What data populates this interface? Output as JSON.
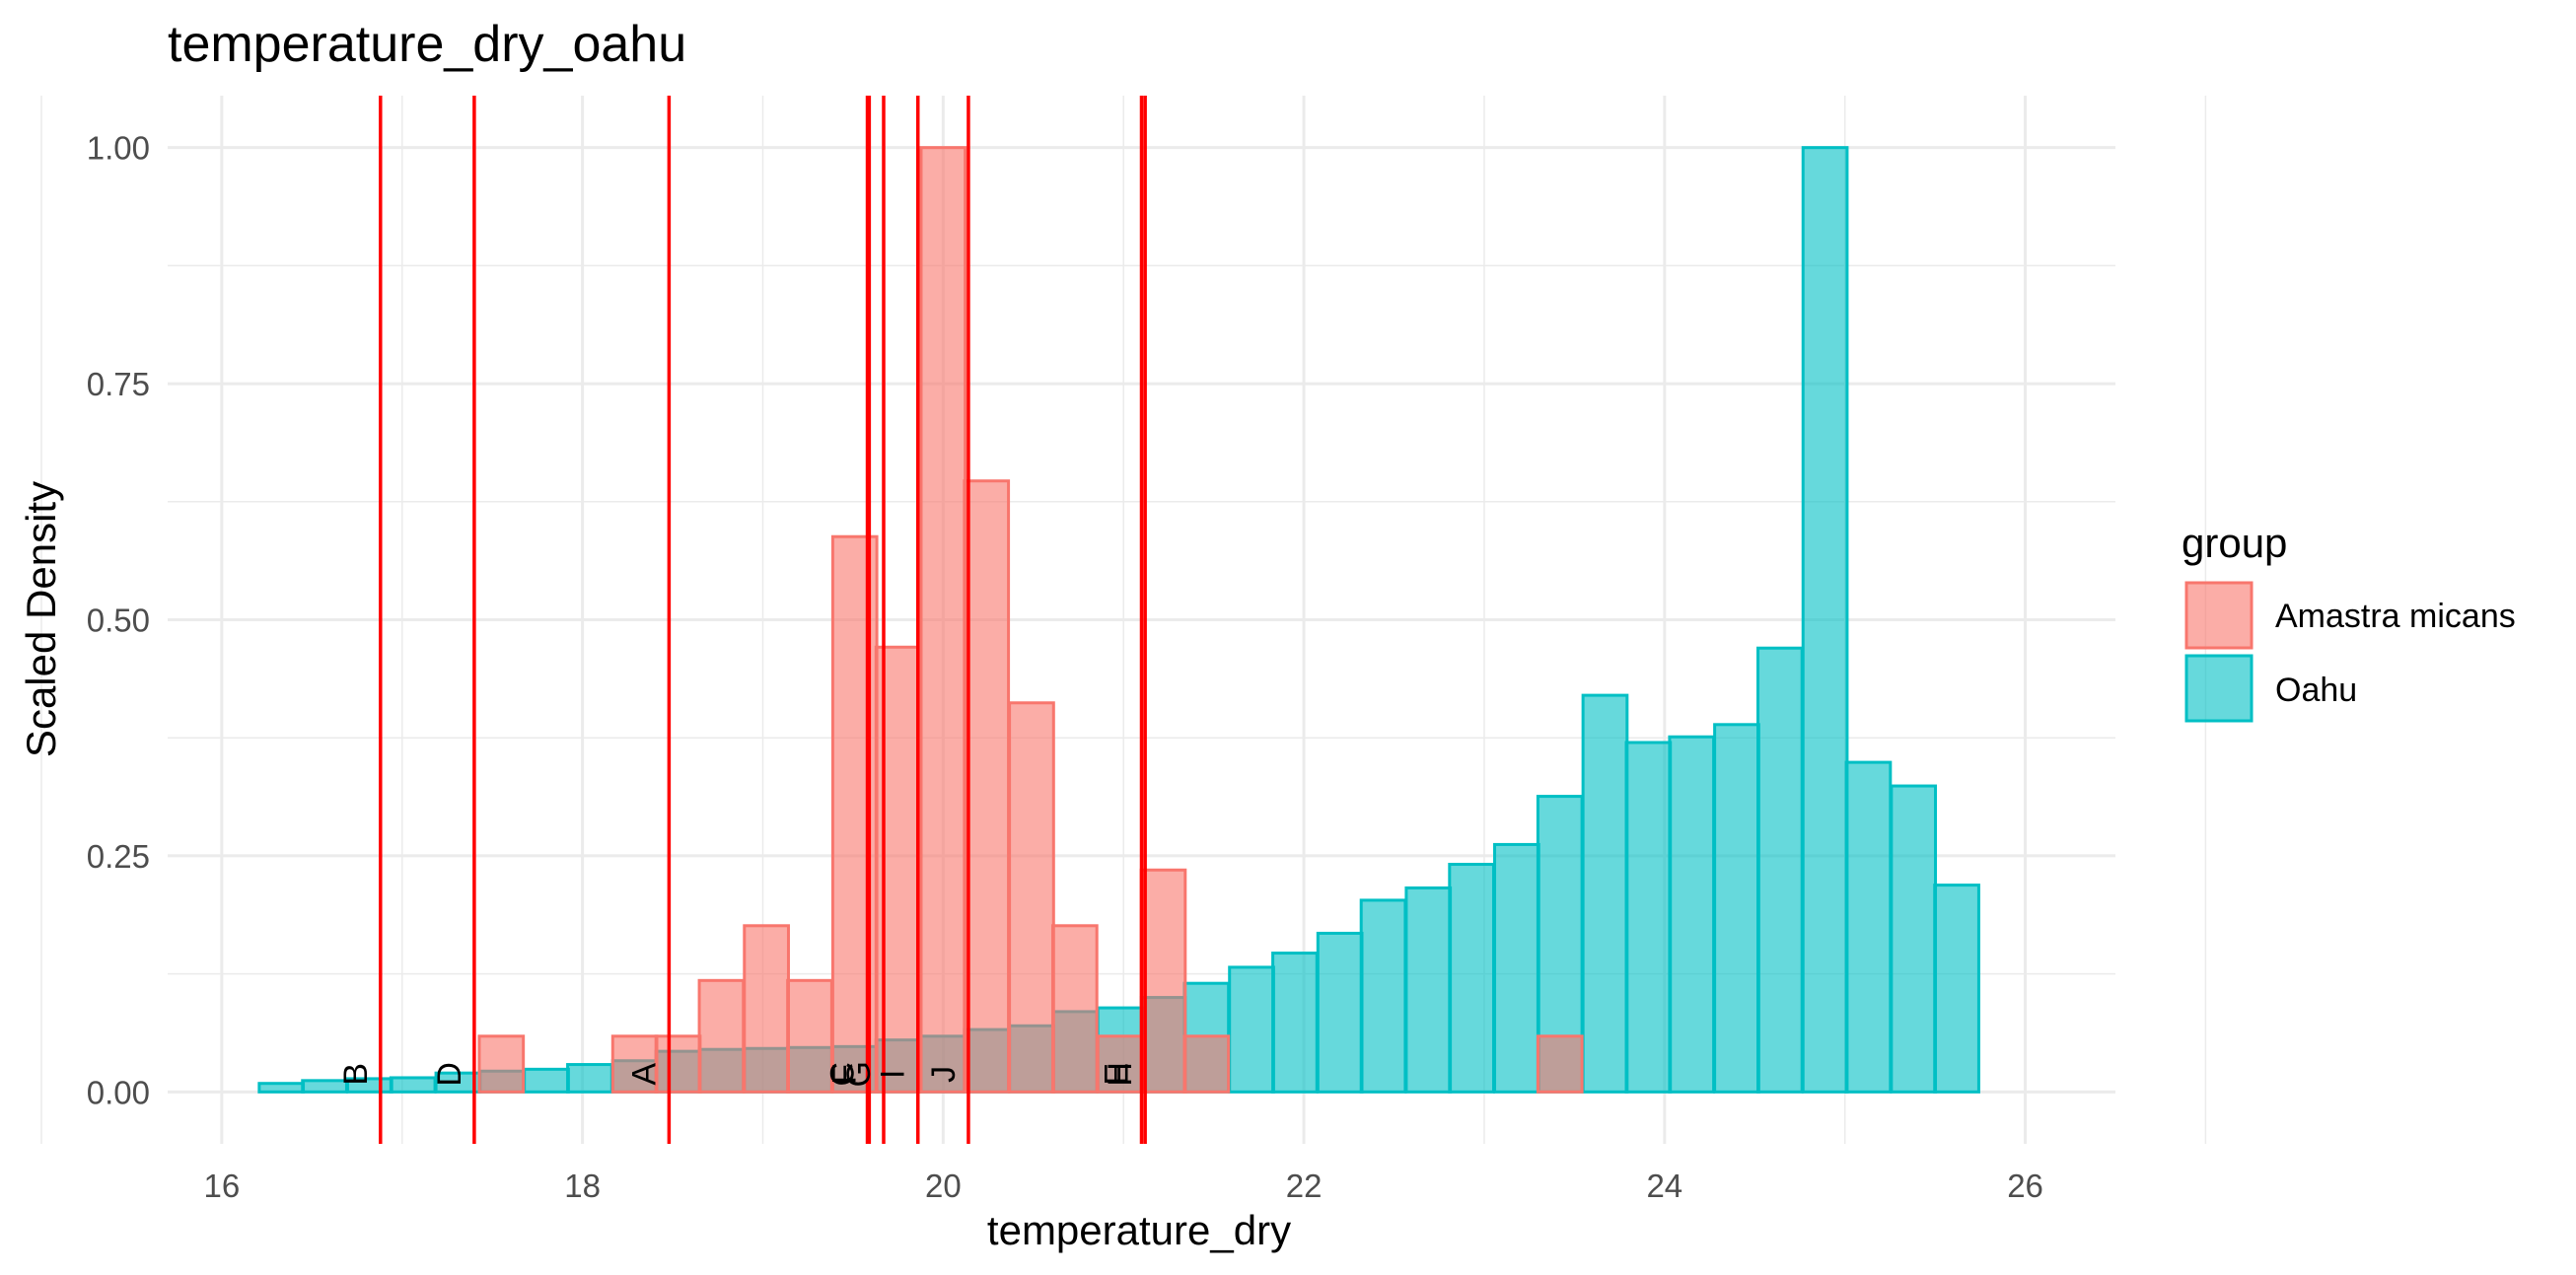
{
  "chart_data": {
    "type": "bar",
    "title": "temperature_dry_oahu",
    "xlabel": "temperature_dry",
    "ylabel": "Scaled Density",
    "xlim": [
      15.7,
      26.5
    ],
    "ylim": [
      -0.055,
      1.055
    ],
    "x_ticks": [
      "16",
      "18",
      "20",
      "22",
      "24",
      "26"
    ],
    "y_ticks": [
      "0.00",
      "0.25",
      "0.50",
      "0.75",
      "1.00"
    ],
    "grid": true,
    "legend_title": "group",
    "legend_position": "right",
    "series": [
      {
        "name": "Oahu",
        "color": "#00BFC4",
        "bin_width": 0.2444,
        "bins": [
          [
            16.33,
            0.009
          ],
          [
            16.57,
            0.012
          ],
          [
            16.82,
            0.014
          ],
          [
            17.06,
            0.015
          ],
          [
            17.31,
            0.02
          ],
          [
            17.55,
            0.022
          ],
          [
            17.8,
            0.024
          ],
          [
            18.04,
            0.029
          ],
          [
            18.29,
            0.033
          ],
          [
            18.53,
            0.043
          ],
          [
            18.77,
            0.045
          ],
          [
            19.02,
            0.046
          ],
          [
            19.26,
            0.047
          ],
          [
            19.51,
            0.048
          ],
          [
            19.75,
            0.055
          ],
          [
            20.0,
            0.059
          ],
          [
            20.24,
            0.066
          ],
          [
            20.49,
            0.07
          ],
          [
            20.73,
            0.085
          ],
          [
            20.98,
            0.089
          ],
          [
            21.22,
            0.1
          ],
          [
            21.46,
            0.115
          ],
          [
            21.71,
            0.132
          ],
          [
            21.95,
            0.147
          ],
          [
            22.2,
            0.168
          ],
          [
            22.44,
            0.203
          ],
          [
            22.69,
            0.216
          ],
          [
            22.93,
            0.241
          ],
          [
            23.18,
            0.262
          ],
          [
            23.42,
            0.313
          ],
          [
            23.67,
            0.42
          ],
          [
            23.91,
            0.37
          ],
          [
            24.15,
            0.376
          ],
          [
            24.4,
            0.389
          ],
          [
            24.64,
            0.47
          ],
          [
            24.89,
            1.0
          ],
          [
            25.13,
            0.349
          ],
          [
            25.38,
            0.324
          ],
          [
            25.62,
            0.219
          ]
        ]
      },
      {
        "name": "Amastra micans",
        "color": "#F8766D",
        "bin_width": 0.2444,
        "bins": [
          [
            17.55,
            0.059
          ],
          [
            18.29,
            0.059
          ],
          [
            18.53,
            0.059
          ],
          [
            18.77,
            0.118
          ],
          [
            19.02,
            0.176
          ],
          [
            19.26,
            0.118
          ],
          [
            19.51,
            0.588
          ],
          [
            19.75,
            0.471
          ],
          [
            20.0,
            1.0
          ],
          [
            20.24,
            0.647
          ],
          [
            20.49,
            0.412
          ],
          [
            20.73,
            0.176
          ],
          [
            20.98,
            0.059
          ],
          [
            21.22,
            0.235
          ],
          [
            21.46,
            0.059
          ],
          [
            23.42,
            0.059
          ]
        ]
      }
    ],
    "vlines": [
      {
        "x": 16.88,
        "label": "B"
      },
      {
        "x": 17.4,
        "label": "D"
      },
      {
        "x": 18.48,
        "label": "A"
      },
      {
        "x": 19.58,
        "label": "C"
      },
      {
        "x": 19.59,
        "label": "F"
      },
      {
        "x": 19.67,
        "label": "G"
      },
      {
        "x": 19.86,
        "label": "I"
      },
      {
        "x": 20.14,
        "label": "J"
      },
      {
        "x": 21.1,
        "label": "E"
      },
      {
        "x": 21.12,
        "label": "H"
      }
    ],
    "vline_color": "#FF0000"
  }
}
